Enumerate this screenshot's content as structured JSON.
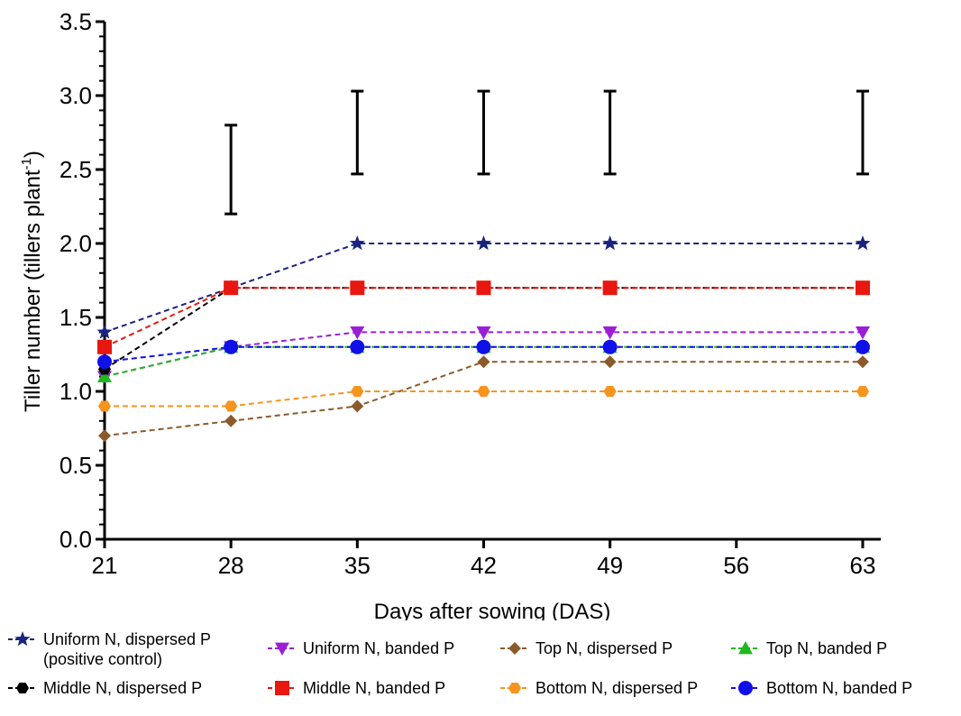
{
  "chart_data": {
    "type": "line",
    "title": "",
    "xlabel": "Days after sowing (DAS)",
    "ylabel_main": "Tiller number (tillers plant",
    "ylabel_sup": "-1",
    "ylabel_end": ")",
    "xlim": [
      21,
      64
    ],
    "ylim": [
      0,
      3.5
    ],
    "x_ticks": [
      21,
      28,
      35,
      42,
      49,
      56,
      63
    ],
    "y_ticks": [
      "0.0",
      "0.5",
      "1.0",
      "1.5",
      "2.0",
      "2.5",
      "3.0",
      "3.5"
    ],
    "x": [
      21,
      28,
      35,
      42,
      49,
      63
    ],
    "series": [
      {
        "name": "Uniform N, dispersed P\n(positive control)",
        "color": "#1a237e",
        "marker": "star",
        "dash": true,
        "values": [
          1.4,
          1.7,
          2.0,
          2.0,
          2.0,
          2.0
        ]
      },
      {
        "name": "Uniform N, banded P",
        "color": "#9b1ed6",
        "marker": "triangle-down",
        "dash": true,
        "values": [
          1.1,
          1.3,
          1.4,
          1.4,
          1.4,
          1.4
        ]
      },
      {
        "name": "Top N, dispersed P",
        "color": "#8b5a2b",
        "marker": "diamond",
        "dash": true,
        "values": [
          0.7,
          0.8,
          0.9,
          1.2,
          1.2,
          1.2
        ]
      },
      {
        "name": "Top N, banded P",
        "color": "#1fb81f",
        "marker": "triangle-up",
        "dash": true,
        "values": [
          1.1,
          1.3,
          1.3,
          1.3,
          1.3,
          1.3
        ]
      },
      {
        "name": "Middle N, dispersed P",
        "color": "#000000",
        "marker": "hexagon",
        "dash": true,
        "values": [
          1.15,
          1.7,
          1.7,
          1.7,
          1.7,
          1.7
        ]
      },
      {
        "name": "Middle N, banded P",
        "color": "#e8170f",
        "marker": "square",
        "dash": true,
        "values": [
          1.3,
          1.7,
          1.7,
          1.7,
          1.7,
          1.7
        ]
      },
      {
        "name": "Bottom N, dispersed P",
        "color": "#f7941d",
        "marker": "hexagon",
        "dash": true,
        "values": [
          0.9,
          0.9,
          1.0,
          1.0,
          1.0,
          1.0
        ]
      },
      {
        "name": "Bottom N, banded P",
        "color": "#1010e8",
        "marker": "circle",
        "dash": true,
        "values": [
          1.2,
          1.3,
          1.3,
          1.3,
          1.3,
          1.3
        ]
      }
    ],
    "error_bars": [
      {
        "x": 28,
        "low": 2.2,
        "high": 2.8
      },
      {
        "x": 35,
        "low": 2.47,
        "high": 3.03
      },
      {
        "x": 42,
        "low": 2.47,
        "high": 3.03
      },
      {
        "x": 49,
        "low": 2.47,
        "high": 3.03
      },
      {
        "x": 63,
        "low": 2.47,
        "high": 3.03
      }
    ],
    "legend_position": "bottom",
    "grid": false
  }
}
